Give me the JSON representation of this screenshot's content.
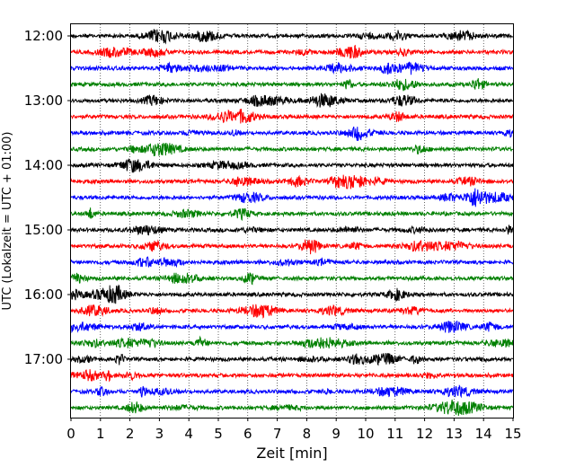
{
  "chart_data": {
    "type": "line",
    "title": "",
    "xlabel": "Zeit  [min]",
    "ylabel": "UTC (Lokalzeit = UTC + 01:00)",
    "xlim": [
      0,
      15
    ],
    "x_ticks": [
      "0",
      "1",
      "2",
      "3",
      "4",
      "5",
      "6",
      "7",
      "8",
      "9",
      "10",
      "11",
      "12",
      "13",
      "14",
      "15"
    ],
    "y_tick_labels": [
      "12:00",
      "13:00",
      "14:00",
      "15:00",
      "16:00",
      "17:00"
    ],
    "grid": "vertical dotted at each minute",
    "line_colors": [
      "#000000",
      "#ff0000",
      "#0000ff",
      "#008000"
    ],
    "traces": [
      {
        "start": "12:00",
        "color": "#000000"
      },
      {
        "start": "12:15",
        "color": "#ff0000"
      },
      {
        "start": "12:30",
        "color": "#0000ff"
      },
      {
        "start": "12:45",
        "color": "#008000"
      },
      {
        "start": "13:00",
        "color": "#000000"
      },
      {
        "start": "13:15",
        "color": "#ff0000"
      },
      {
        "start": "13:30",
        "color": "#0000ff"
      },
      {
        "start": "13:45",
        "color": "#008000"
      },
      {
        "start": "14:00",
        "color": "#000000"
      },
      {
        "start": "14:15",
        "color": "#ff0000"
      },
      {
        "start": "14:30",
        "color": "#0000ff"
      },
      {
        "start": "14:45",
        "color": "#008000"
      },
      {
        "start": "15:00",
        "color": "#000000"
      },
      {
        "start": "15:15",
        "color": "#ff0000"
      },
      {
        "start": "15:30",
        "color": "#0000ff"
      },
      {
        "start": "15:45",
        "color": "#008000"
      },
      {
        "start": "16:00",
        "color": "#000000"
      },
      {
        "start": "16:15",
        "color": "#ff0000"
      },
      {
        "start": "16:30",
        "color": "#0000ff"
      },
      {
        "start": "16:45",
        "color": "#008000"
      },
      {
        "start": "17:00",
        "color": "#000000"
      },
      {
        "start": "17:15",
        "color": "#ff0000"
      },
      {
        "start": "17:30",
        "color": "#0000ff"
      },
      {
        "start": "17:45",
        "color": "#008000"
      }
    ]
  }
}
